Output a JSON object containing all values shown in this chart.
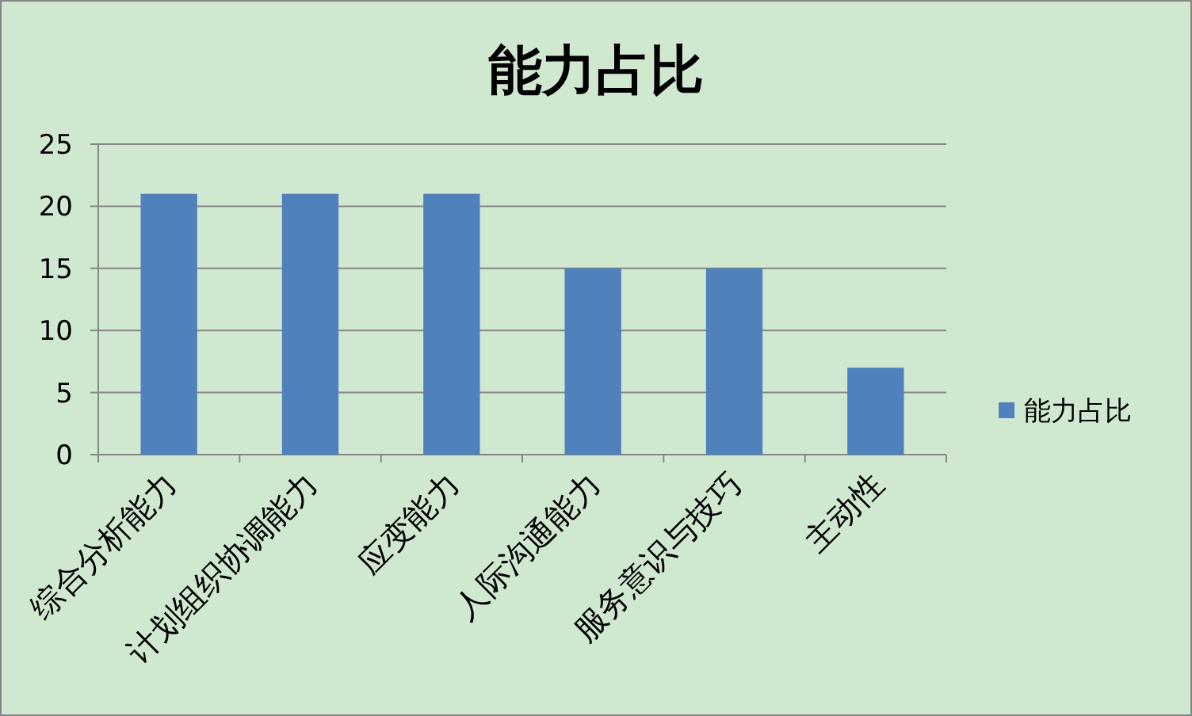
{
  "chart_data": {
    "type": "bar",
    "title": "能力占比",
    "categories": [
      "综合分析能力",
      "计划组织协调能力",
      "应变能力",
      "人际沟通能力",
      "服务意识与技巧",
      "主动性"
    ],
    "series": [
      {
        "name": "能力占比",
        "color": "#4f81bd",
        "values": [
          21,
          21,
          21,
          15,
          15,
          7
        ]
      }
    ],
    "ylim": [
      0,
      25
    ],
    "yticks": [
      0,
      5,
      10,
      15,
      20,
      25
    ],
    "grid": "y",
    "legend": "right"
  }
}
